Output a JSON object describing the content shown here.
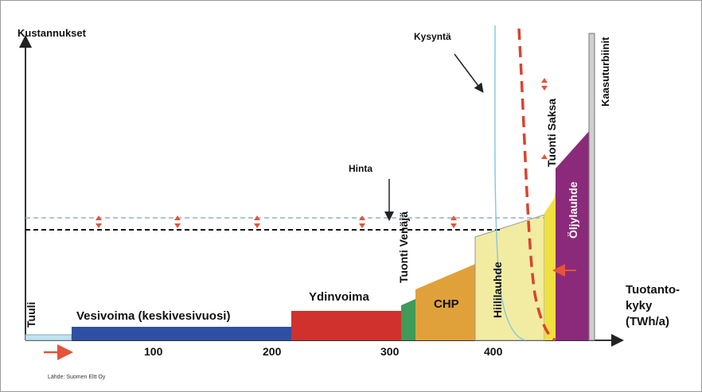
{
  "chart_data": {
    "type": "diagram",
    "axes": {
      "y_label": "Kustannukset",
      "x_label_lines": [
        "Tuotanto-",
        "kyky",
        "(TWh/a)"
      ],
      "x_ticks": [
        {
          "value": 100,
          "label": "100"
        },
        {
          "value": 200,
          "label": "200"
        },
        {
          "value": 300,
          "label": "300"
        },
        {
          "value": 400,
          "label": "400"
        }
      ]
    },
    "segments": [
      {
        "label": "Tuuli",
        "color": "#bfe3ef"
      },
      {
        "label": "Vesivoima (keskivesivuosi)",
        "color": "#2e4fa3"
      },
      {
        "label": "Ydinvoima",
        "color": "#d0312d"
      },
      {
        "label": "Tuonti Venäjä",
        "color": "#3f9b57"
      },
      {
        "label": "CHP",
        "color": "#e0a13a"
      },
      {
        "label": "Hiililauhde",
        "color": "#f2eca2"
      },
      {
        "label": "Öljylauhde",
        "color": "#8b2a7a"
      },
      {
        "label": "Tuonti Saksa",
        "color": "#f0e040"
      },
      {
        "label": "Kaasuturbiinit",
        "color": "#cfcfcf"
      }
    ],
    "annotations": {
      "hinta": "Hinta",
      "kysynta": "Kysyntä",
      "source": "Lähde: Suomen Eltt Oy"
    }
  }
}
